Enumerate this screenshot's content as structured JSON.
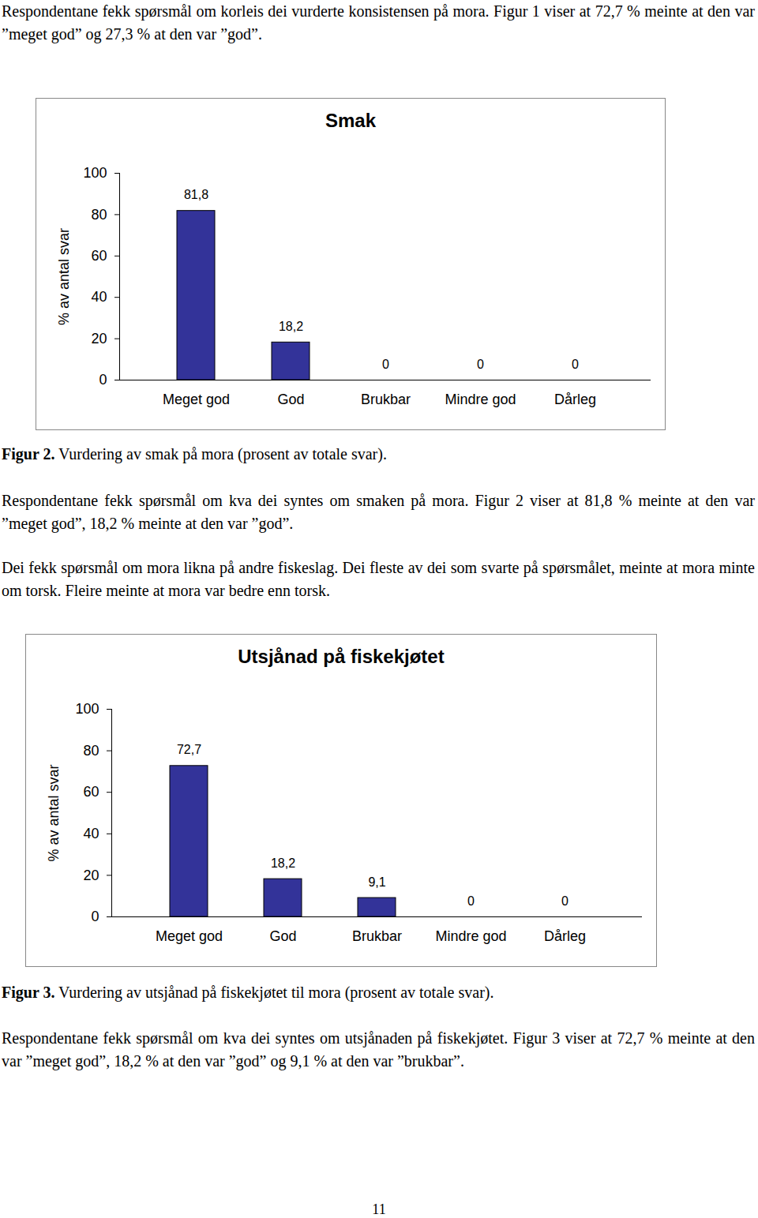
{
  "chart_data": [
    {
      "type": "bar",
      "title": "Smak",
      "y_label": "% av antal svar",
      "categories": [
        "Meget god",
        "God",
        "Brukbar",
        "Mindre god",
        "Dårleg"
      ],
      "values": [
        81.8,
        18.2,
        0,
        0,
        0
      ],
      "value_labels": [
        "81,8",
        "18,2",
        "0",
        "0",
        "0"
      ],
      "color": "#333399",
      "ylim": [
        0,
        100
      ],
      "yticks": [
        0,
        20,
        40,
        60,
        80,
        100
      ],
      "grid": false,
      "data_labels": true
    },
    {
      "type": "bar",
      "title": "Utsjånad på fiskekjøtet",
      "y_label": "% av antal svar",
      "categories": [
        "Meget god",
        "God",
        "Brukbar",
        "Mindre god",
        "Dårleg"
      ],
      "values": [
        72.7,
        18.2,
        9.1,
        0,
        0
      ],
      "value_labels": [
        "72,7",
        "18,2",
        "9,1",
        "0",
        "0"
      ],
      "color": "#333399",
      "ylim": [
        0,
        100
      ],
      "yticks": [
        0,
        20,
        40,
        60,
        80,
        100
      ],
      "grid": false,
      "data_labels": true
    }
  ],
  "document": {
    "intro": "Respondentane fekk spørsmål om korleis dei vurderte konsistensen på mora. Figur 1 viser at 72,7 % meinte at den var ”meget god” og 27,3 % at den var ”god”.",
    "captions": [
      {
        "label": "Figur 2.",
        "text": "Vurdering av smak på mora (prosent av totale svar)."
      },
      {
        "label": "Figur 3.",
        "text": "Vurdering av utsjånad på fiskekjøtet til mora (prosent av totale svar)."
      }
    ],
    "paragraphs_after": [
      [
        "Respondentane fekk spørsmål om kva dei syntes om smaken på mora. Figur 2 viser at 81,8 % meinte at den var ”meget god”, 18,2 % meinte at den var ”god”.",
        "Dei fekk spørsmål om mora likna på andre fiskeslag. Dei fleste av dei som svarte på spørsmålet, meinte at mora minte om torsk. Fleire meinte at mora var bedre enn torsk."
      ],
      [
        "Respondentane fekk spørsmål om kva dei syntes om utsjånaden på fiskekjøtet. Figur 3 viser at 72,7 % meinte at den var ”meget god”, 18,2 % at den var ”god” og 9,1 % at den var ”brukbar”."
      ]
    ],
    "page_number": "11"
  }
}
